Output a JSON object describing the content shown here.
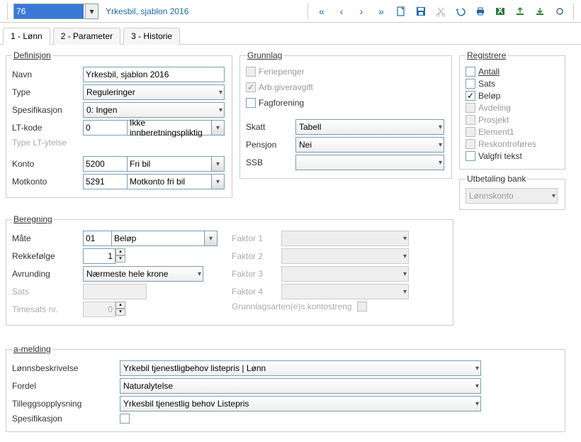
{
  "toolbar": {
    "id_value": "76",
    "title": "Yrkesbil, sjablon 2016"
  },
  "tabs": [
    "1 - Lønn",
    "2 - Parameter",
    "3 - Historie"
  ],
  "activeTab": 0,
  "definisjon": {
    "legend": "Definisjon",
    "navn_label": "Navn",
    "navn": "Yrkesbil, sjablon 2016",
    "type_label": "Type",
    "type": "Reguleringer",
    "spes_label": "Spesifikasjon",
    "spes": "0:  Ingen",
    "lt_label": "LT-kode",
    "lt_code": "0",
    "lt_text": "Ikke innberetningspliktig",
    "type_lt_label": "Type LT-ytelse",
    "konto_label": "Konto",
    "konto_code": "5200",
    "konto_text": "Fri bil",
    "motkonto_label": "Motkonto",
    "motkonto_code": "5291",
    "motkonto_text": "Motkonto fri bil"
  },
  "grunnlag": {
    "legend": "Grunnlag",
    "feriepenger": "Feriepenger",
    "arb": "Arb.giveravgift",
    "fagforening": "Fagforening",
    "skatt_label": "Skatt",
    "skatt": "Tabell",
    "pensjon_label": "Pensjon",
    "pensjon": "Nei",
    "ssb_label": "SSB",
    "ssb": ""
  },
  "registrere": {
    "legend": "Registrere",
    "items": [
      {
        "label": "Antall",
        "checked": false,
        "enabled": true,
        "underline": true
      },
      {
        "label": "Sats",
        "checked": false,
        "enabled": true
      },
      {
        "label": "Beløp",
        "checked": true,
        "enabled": true
      },
      {
        "label": "Avdeling",
        "checked": false,
        "enabled": false
      },
      {
        "label": "Prosjekt",
        "checked": false,
        "enabled": false
      },
      {
        "label": "Element1",
        "checked": false,
        "enabled": false
      },
      {
        "label": "Reskontroføres",
        "checked": false,
        "enabled": false
      },
      {
        "label": "Valgfri tekst",
        "checked": false,
        "enabled": true
      }
    ],
    "utbetaling_legend": "Utbetaling bank",
    "utbetaling": "Lønnskonto"
  },
  "beregning": {
    "legend": "Beregning",
    "mate_label": "Måte",
    "mate_code": "01",
    "mate_text": "Beløp",
    "rekke_label": "Rekkefølge",
    "rekke": "1",
    "avrund_label": "Avrunding",
    "avrund": "Nærmeste hele krone",
    "sats_label": "Sats",
    "timesats_label": "Timesats nr.",
    "timesats": "0",
    "faktor1_label": "Faktor 1",
    "faktor2_label": "Faktor 2",
    "faktor3_label": "Faktor 3",
    "faktor4_label": "Faktor 4",
    "grunn_label": "Grunnlagsarten(e)s kontostreng"
  },
  "amelding": {
    "legend": "a-melding",
    "lonns_label": "Lønnsbeskrivelse",
    "lonns": "Yrkebil tjenestligbehov listepris | Lønn",
    "fordel_label": "Fordel",
    "fordel": "Naturalytelse",
    "tillegg_label": "Tilleggsopplysning",
    "tillegg": "Yrkesbil tjenestlig behov Listepris",
    "spes_label": "Spesifikasjon"
  },
  "colors": {
    "link": "#1a6aa8",
    "border": "#7a9eb5"
  }
}
